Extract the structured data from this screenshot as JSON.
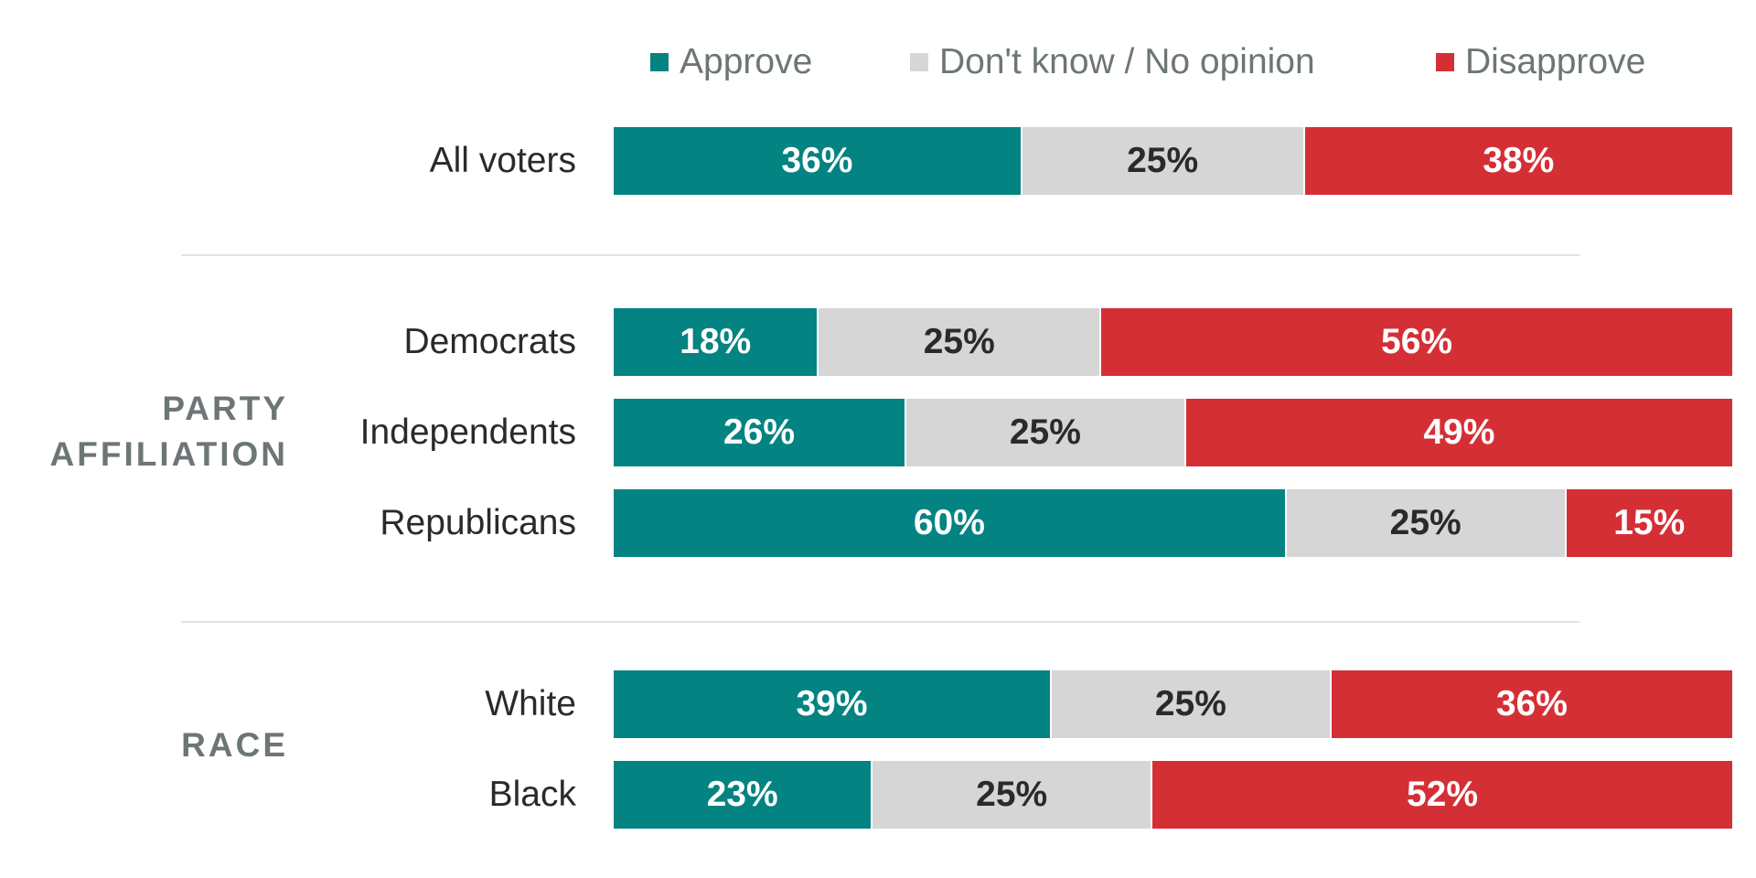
{
  "chart_data": {
    "type": "bar",
    "orientation": "horizontal",
    "stacked": true,
    "normalized": true,
    "title": "",
    "xlabel": "",
    "ylabel": "",
    "legend": {
      "placement": "top",
      "entries": [
        {
          "key": "approve",
          "label": "Approve",
          "color": "#038381"
        },
        {
          "key": "dont_know",
          "label": "Don't know / No opinion",
          "color": "#d6d6d6"
        },
        {
          "key": "disapprove",
          "label": "Disapprove",
          "color": "#d52f36"
        }
      ]
    },
    "series": [
      {
        "name": "Approve",
        "key": "approve",
        "color": "#038381",
        "label_color": "#ffffff"
      },
      {
        "name": "Don't know / No opinion",
        "key": "dont_know",
        "color": "#d6d6d6",
        "label_color": "#2a2a2a"
      },
      {
        "name": "Disapprove",
        "key": "disapprove",
        "color": "#d52f36",
        "label_color": "#ffffff"
      }
    ],
    "groups": [
      {
        "section": "",
        "rows": [
          {
            "category": "All voters",
            "values": [
              36,
              25,
              38
            ],
            "labels": [
              "36%",
              "25%",
              "38%"
            ]
          }
        ]
      },
      {
        "section": "PARTY AFFILIATION",
        "section_lines": [
          "PARTY",
          "AFFILIATION"
        ],
        "rows": [
          {
            "category": "Democrats",
            "values": [
              18,
              25,
              56
            ],
            "labels": [
              "18%",
              "25%",
              "56%"
            ]
          },
          {
            "category": "Independents",
            "values": [
              26,
              25,
              49
            ],
            "labels": [
              "26%",
              "25%",
              "49%"
            ]
          },
          {
            "category": "Republicans",
            "values": [
              60,
              25,
              15
            ],
            "labels": [
              "60%",
              "25%",
              "15%"
            ]
          }
        ]
      },
      {
        "section": "RACE",
        "section_lines": [
          "RACE"
        ],
        "rows": [
          {
            "category": "White",
            "values": [
              39,
              25,
              36
            ],
            "labels": [
              "39%",
              "25%",
              "36%"
            ]
          },
          {
            "category": "Black",
            "values": [
              23,
              25,
              52
            ],
            "labels": [
              "23%",
              "25%",
              "52%"
            ]
          }
        ]
      }
    ],
    "categories": [
      "All voters",
      "Democrats",
      "Independents",
      "Republicans",
      "White",
      "Black"
    ],
    "value_units": "percent"
  }
}
